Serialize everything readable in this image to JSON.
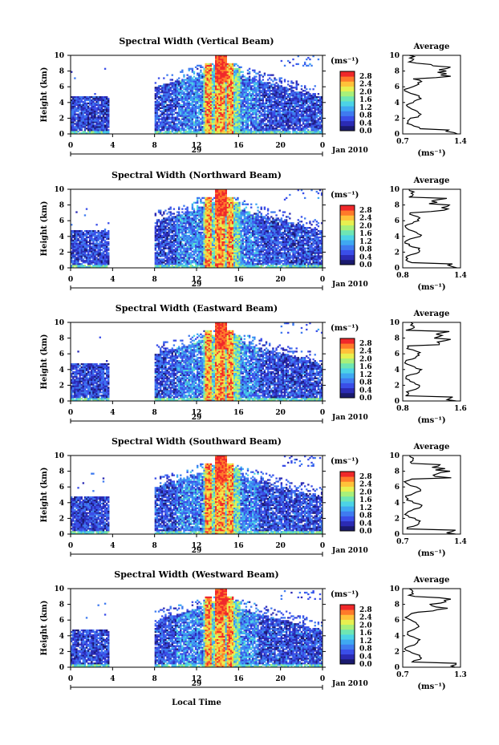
{
  "chart_data": [
    {
      "type": "heatmap",
      "title": "Spectral Width (Vertical Beam)",
      "ylabel": "Height (km)",
      "xlim": [
        0,
        24
      ],
      "ylim": [
        0,
        10
      ],
      "x_ticks": [
        "0",
        "4",
        "8",
        "12",
        "16",
        "20",
        "0"
      ],
      "y_ticks": [
        "0",
        "2",
        "4",
        "6",
        "8",
        "10"
      ],
      "date_label": "29",
      "month_label": "Jan 2010",
      "colorbar": {
        "unit_label": "(ms⁻¹)",
        "ticks": [
          "0.0",
          "0.4",
          "0.8",
          "1.2",
          "1.6",
          "2.0",
          "2.4",
          "2.8"
        ]
      },
      "profile": {
        "title": "Average",
        "xlabel": "(ms⁻¹)",
        "x_ticks": [
          "0.7",
          "1.4"
        ],
        "xlim": [
          0.7,
          1.4
        ],
        "y_ticks": [
          "0",
          "2",
          "4",
          "6",
          "8",
          "10"
        ]
      }
    },
    {
      "type": "heatmap",
      "title": "Spectral Width (Northward Beam)",
      "ylabel": "Height (km)",
      "xlim": [
        0,
        24
      ],
      "ylim": [
        0,
        10
      ],
      "x_ticks": [
        "0",
        "4",
        "8",
        "12",
        "16",
        "20",
        "0"
      ],
      "y_ticks": [
        "0",
        "2",
        "4",
        "6",
        "8",
        "10"
      ],
      "date_label": "29",
      "month_label": "Jan 2010",
      "colorbar": {
        "unit_label": "(ms⁻¹)",
        "ticks": [
          "0.0",
          "0.4",
          "0.8",
          "1.2",
          "1.6",
          "2.0",
          "2.4",
          "2.8"
        ]
      },
      "profile": {
        "title": "Average",
        "xlabel": "(ms⁻¹)",
        "x_ticks": [
          "0.8",
          "1.4"
        ],
        "xlim": [
          0.8,
          1.4
        ],
        "y_ticks": [
          "0",
          "2",
          "4",
          "6",
          "8",
          "10"
        ]
      }
    },
    {
      "type": "heatmap",
      "title": "Spectral Width (Eastward Beam)",
      "ylabel": "Height (km)",
      "xlim": [
        0,
        24
      ],
      "ylim": [
        0,
        10
      ],
      "x_ticks": [
        "0",
        "4",
        "8",
        "12",
        "16",
        "20",
        "0"
      ],
      "y_ticks": [
        "0",
        "2",
        "4",
        "6",
        "8",
        "10"
      ],
      "date_label": "29",
      "month_label": "Jan 2010",
      "colorbar": {
        "unit_label": "(ms⁻¹)",
        "ticks": [
          "0.0",
          "0.4",
          "0.8",
          "1.2",
          "1.6",
          "2.0",
          "2.4",
          "2.8"
        ]
      },
      "profile": {
        "title": "Average",
        "xlabel": "(ms⁻¹)",
        "x_ticks": [
          "0.8",
          "1.6"
        ],
        "xlim": [
          0.8,
          1.6
        ],
        "y_ticks": [
          "0",
          "2",
          "4",
          "6",
          "8",
          "10"
        ]
      }
    },
    {
      "type": "heatmap",
      "title": "Spectral Width (Southward Beam)",
      "ylabel": "Height (km)",
      "xlim": [
        0,
        24
      ],
      "ylim": [
        0,
        10
      ],
      "x_ticks": [
        "0",
        "4",
        "8",
        "12",
        "16",
        "20",
        "0"
      ],
      "y_ticks": [
        "0",
        "2",
        "4",
        "6",
        "8",
        "10"
      ],
      "date_label": "29",
      "month_label": "Jan 2010",
      "colorbar": {
        "unit_label": "(ms⁻¹)",
        "ticks": [
          "0.0",
          "0.4",
          "0.8",
          "1.2",
          "1.6",
          "2.0",
          "2.4",
          "2.8"
        ]
      },
      "profile": {
        "title": "Average",
        "xlabel": "(ms⁻¹)",
        "x_ticks": [
          "0.7",
          "1.4"
        ],
        "xlim": [
          0.7,
          1.4
        ],
        "y_ticks": [
          "0",
          "2",
          "4",
          "6",
          "8",
          "10"
        ]
      }
    },
    {
      "type": "heatmap",
      "title": "Spectral Width (Westward Beam)",
      "ylabel": "Height (km)",
      "xlim": [
        0,
        24
      ],
      "ylim": [
        0,
        10
      ],
      "x_ticks": [
        "0",
        "4",
        "8",
        "12",
        "16",
        "20",
        "0"
      ],
      "y_ticks": [
        "0",
        "2",
        "4",
        "6",
        "8",
        "10"
      ],
      "date_label": "29",
      "month_label": "Jan 2010",
      "colorbar": {
        "unit_label": "(ms⁻¹)",
        "ticks": [
          "0.0",
          "0.4",
          "0.8",
          "1.2",
          "1.6",
          "2.0",
          "2.4",
          "2.8"
        ]
      },
      "profile": {
        "title": "Average",
        "xlabel": "(ms⁻¹)",
        "x_ticks": [
          "0.7",
          "1.3"
        ],
        "xlim": [
          0.7,
          1.3
        ],
        "y_ticks": [
          "0",
          "2",
          "4",
          "6",
          "8",
          "10"
        ]
      }
    }
  ],
  "footer": {
    "xlabel": "Local Time"
  },
  "colormap": [
    "#1a1a6e",
    "#2b2bb4",
    "#3a4ee8",
    "#3f7bf0",
    "#3fa8f2",
    "#4cd3e6",
    "#6ee6b4",
    "#a8f07a",
    "#e8f050",
    "#ffc23a",
    "#ff7a2a",
    "#f0282a"
  ]
}
